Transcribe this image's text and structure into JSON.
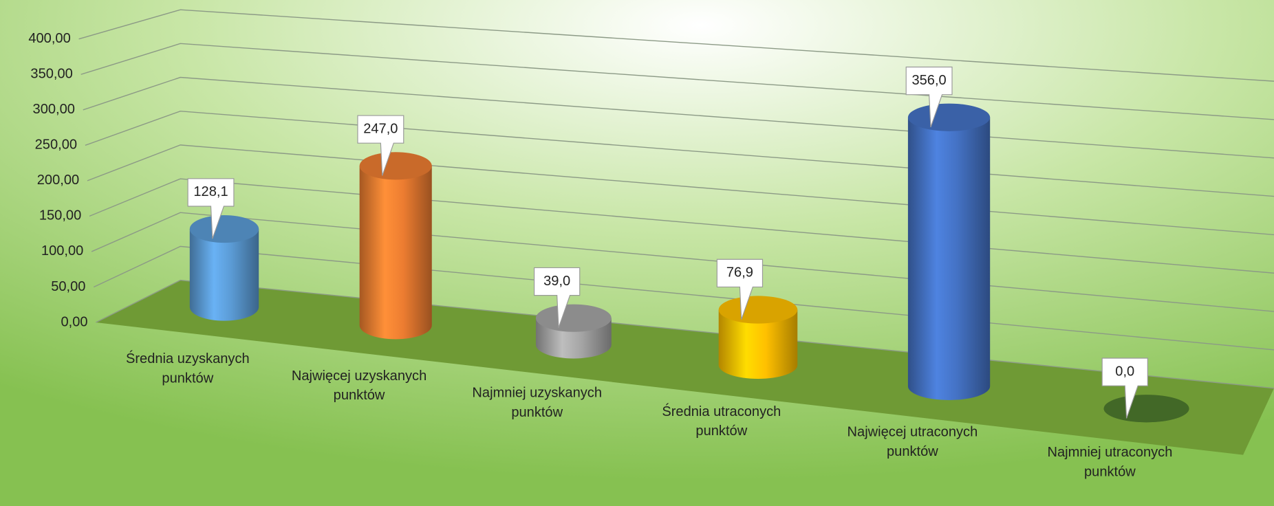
{
  "chart_data": {
    "type": "bar3d",
    "categories": [
      "Średnia uzyskanych punktów",
      "Najwięcej uzyskanych punktów",
      "Najmniej uzyskanych punktów",
      "Średnia utraconych punktów",
      "Najwięcej utraconych punktów",
      "Najmniej utraconych punktów"
    ],
    "values": [
      128.1,
      247,
      39,
      76.9,
      356,
      0
    ],
    "value_labels": [
      "128,1",
      "247,0",
      "39,0",
      "76,9",
      "356,0",
      "0,0"
    ],
    "colors": [
      "#5b9bd5",
      "#ed7d31",
      "#a5a5a5",
      "#ffc000",
      "#4472c4",
      "#4e7a2e"
    ],
    "ylim": [
      0,
      400
    ],
    "yticks": [
      {
        "value": 0,
        "label": "0,00"
      },
      {
        "value": 50,
        "label": "50,00"
      },
      {
        "value": 100,
        "label": "100,00"
      },
      {
        "value": 150,
        "label": "150,00"
      },
      {
        "value": 200,
        "label": "200,00"
      },
      {
        "value": 250,
        "label": "250,00"
      },
      {
        "value": 300,
        "label": "300,00"
      },
      {
        "value": 350,
        "label": "350,00"
      },
      {
        "value": 400,
        "label": "400,00"
      }
    ],
    "grid": true
  }
}
